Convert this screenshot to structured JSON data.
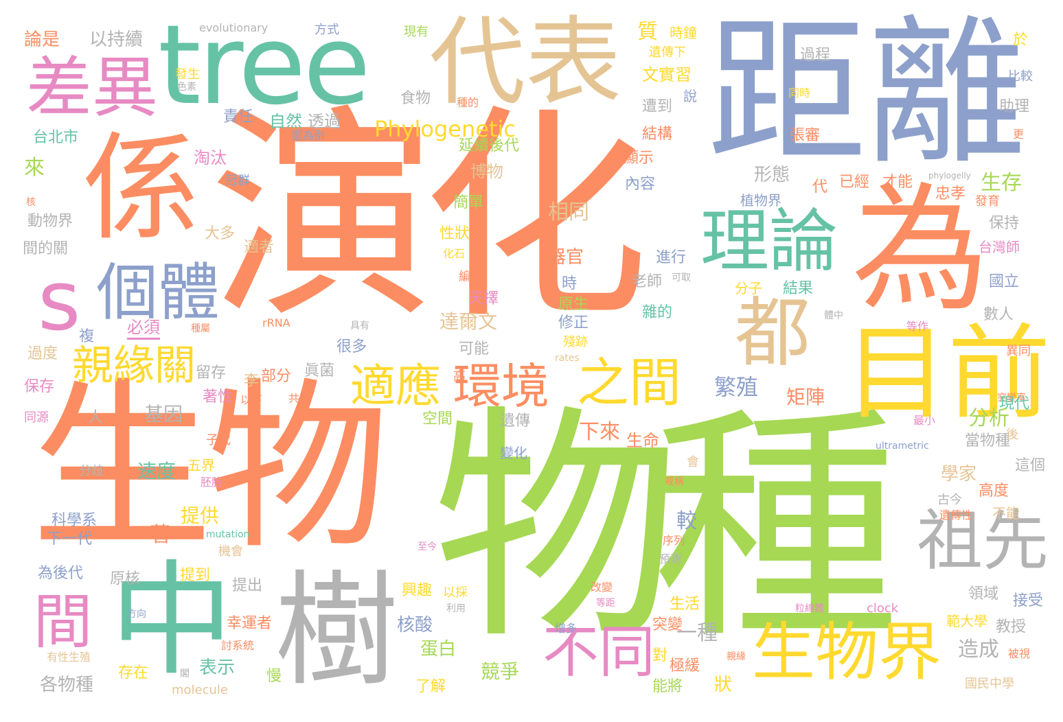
{
  "palette": {
    "orange": "#fc8d62",
    "green": "#a6d854",
    "blue": "#8da0cb",
    "teal": "#66c2a5",
    "pink": "#e78ac3",
    "yellow": "#ffd92f",
    "tan": "#e5c494",
    "gray": "#b3b3b3"
  },
  "words": [
    "演化",
    "生物",
    "物種",
    "距離",
    "tree",
    "係",
    "為",
    "代表",
    "中",
    "樹",
    "目前",
    "s",
    "差異",
    "理論",
    "都",
    "祖先",
    "個體",
    "生物界",
    "不同",
    "間",
    "之間",
    "環境",
    "適應",
    "親緣關",
    "Phylogenetic"
  ],
  "small_words": [
    "論是",
    "以持續",
    "evolutionary",
    "方式",
    "現有",
    "質",
    "時鐘",
    "於",
    "遺傳下",
    "過程",
    "比較",
    "發生",
    "色素",
    "同時",
    "食物",
    "種的",
    "文實習",
    "說",
    "助理",
    "責任",
    "自然",
    "透過",
    "遭到",
    "台北市",
    "圖為例",
    "延續後代",
    "結構",
    "張審",
    "更",
    "來",
    "淘汰",
    "顯示",
    "冠群",
    "博物",
    "內容",
    "phylogelly",
    "生存",
    "形態",
    "已經",
    "才能",
    "代",
    "核",
    "植物界",
    "忠孝",
    "發育",
    "動物界",
    "簡單",
    "相同",
    "保持",
    "大多",
    "性狀",
    "適者",
    "間的關",
    "器官",
    "進行",
    "台灣師",
    "化石",
    "可取",
    "分子",
    "國立",
    "老師",
    "編輯",
    "時",
    "天擇",
    "結果",
    "原生",
    "雜的",
    "必須",
    "rRNA",
    "修正",
    "體中",
    "數人",
    "達爾文",
    "複",
    "種屬",
    "具有",
    "殘跡",
    "等作",
    "過度",
    "很多",
    "可能",
    "rates",
    "異同",
    "留存",
    "眞菌",
    "高",
    "繁殖",
    "保存",
    "李",
    "部分",
    "矩陣",
    "突變率",
    "著性",
    "以下",
    "共同",
    "現代",
    "同源",
    "人",
    "基因",
    "空間",
    "遺傳",
    "分析",
    "子代",
    "下來",
    "最小",
    "當物種",
    "生命",
    "後",
    "分歧",
    "速度",
    "五界",
    "變化",
    "ultrametric",
    "學家",
    "這個",
    "胚胎",
    "會",
    "戒稱",
    "古今",
    "高度",
    "提供",
    "較",
    "遺傳性",
    "科學系",
    "下一代",
    "著",
    "序列",
    "不能",
    "mutation",
    "機會",
    "至今",
    "預測",
    "為後代",
    "原核",
    "提到",
    "提出",
    "興趣",
    "以採",
    "改變",
    "領域",
    "接受",
    "方向",
    "利用",
    "等距",
    "生活",
    "突變",
    "粒線體",
    "clock",
    "範大學",
    "幸運者",
    "增多",
    "教授",
    "一種",
    "討系統",
    "狀",
    "核酸",
    "造成",
    "被視",
    "有性生殖",
    "蛋白",
    "極緩",
    "對",
    "國民中學",
    "慢",
    "表示",
    "各物種",
    "存在",
    "競爭",
    "能將",
    "molecule",
    "了解",
    "閣",
    "親緣"
  ]
}
